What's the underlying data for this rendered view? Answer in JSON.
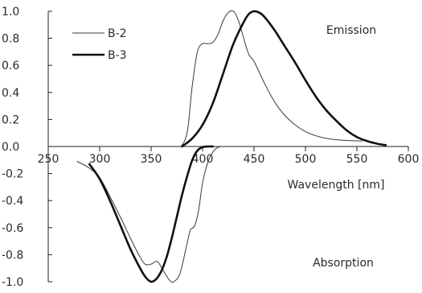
{
  "chart_data": {
    "type": "line",
    "xlabel": "Wavelength [nm]",
    "xlim": [
      250,
      600
    ],
    "ylim": [
      -1.0,
      1.0
    ],
    "x_ticks": [
      250,
      300,
      350,
      400,
      450,
      500,
      550,
      600
    ],
    "y_ticks": [
      1.0,
      0.8,
      0.6,
      0.4,
      0.2,
      0.0,
      -0.2,
      -0.4,
      -0.6,
      -0.8,
      -1.0
    ],
    "x_tick_labels": [
      "250",
      "300",
      "350",
      "400",
      "450",
      "500",
      "550",
      "600"
    ],
    "y_tick_labels": [
      "1.0",
      "0.8",
      "0.6",
      "0.4",
      "0.2",
      "0.0",
      "-0.2",
      "-0.4",
      "-0.6",
      "-0.8",
      "-1.0"
    ],
    "legend_placement": "top-left",
    "grid": false,
    "annotations": [
      "Emission",
      "Absorption"
    ],
    "series": [
      {
        "name": "B-2",
        "color": "#3a3a3a",
        "style": "thin",
        "segments": [
          {
            "x": [
              278,
              290,
              300,
              310,
              320,
              330,
              338,
              344,
              350,
              356,
              362,
              368,
              372,
              378,
              384,
              388,
              392,
              396,
              400,
              405,
              410,
              414,
              418
            ],
            "y": [
              -0.11,
              -0.16,
              -0.23,
              -0.37,
              -0.52,
              -0.68,
              -0.8,
              -0.87,
              -0.87,
              -0.85,
              -0.92,
              -0.99,
              -1.0,
              -0.94,
              -0.75,
              -0.62,
              -0.59,
              -0.48,
              -0.27,
              -0.12,
              -0.04,
              -0.01,
              0.0
            ]
          },
          {
            "x": [
              380,
              383,
              386,
              390,
              395,
              400,
              405,
              410,
              415,
              420,
              425,
              430,
              435,
              440,
              445,
              450,
              460,
              470,
              480,
              490,
              500,
              510,
              520,
              530,
              540,
              555
            ],
            "y": [
              0.01,
              0.05,
              0.15,
              0.45,
              0.7,
              0.76,
              0.76,
              0.77,
              0.83,
              0.93,
              0.99,
              1.0,
              0.93,
              0.8,
              0.68,
              0.63,
              0.47,
              0.33,
              0.23,
              0.16,
              0.11,
              0.08,
              0.06,
              0.05,
              0.045,
              0.04
            ]
          }
        ]
      },
      {
        "name": "B-3",
        "color": "#111111",
        "style": "thick",
        "segments": [
          {
            "x": [
              290,
              300,
              310,
              320,
              330,
              340,
              345,
              350,
              355,
              360,
              365,
              370,
              375,
              380,
              385,
              390,
              395,
              400,
              405,
              410
            ],
            "y": [
              -0.13,
              -0.24,
              -0.4,
              -0.58,
              -0.76,
              -0.91,
              -0.97,
              -1.0,
              -0.98,
              -0.92,
              -0.82,
              -0.68,
              -0.52,
              -0.36,
              -0.22,
              -0.1,
              -0.03,
              -0.005,
              0.0,
              0.0
            ]
          },
          {
            "x": [
              380,
              390,
              400,
              410,
              420,
              430,
              440,
              445,
              450,
              455,
              460,
              470,
              480,
              490,
              500,
              510,
              520,
              530,
              540,
              550,
              560,
              570,
              578
            ],
            "y": [
              0.0,
              0.06,
              0.16,
              0.32,
              0.54,
              0.76,
              0.92,
              0.98,
              1.0,
              0.99,
              0.96,
              0.86,
              0.74,
              0.62,
              0.49,
              0.37,
              0.27,
              0.19,
              0.12,
              0.07,
              0.04,
              0.02,
              0.01
            ]
          }
        ]
      }
    ]
  }
}
